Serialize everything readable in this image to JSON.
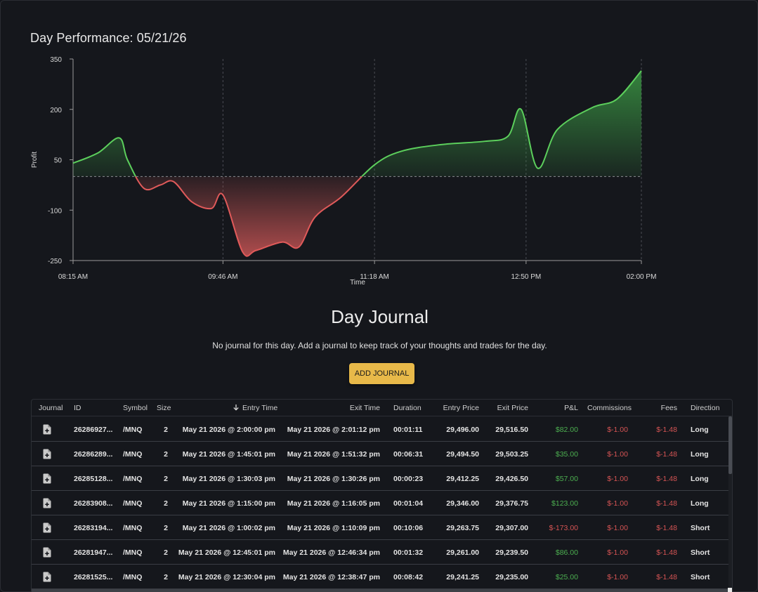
{
  "performance": {
    "title": "Day Performance: 05/21/26"
  },
  "chart_data": {
    "type": "area",
    "xlabel": "Time",
    "ylabel": "Profit",
    "yticks": [
      "350",
      "200",
      "50",
      "-100",
      "-250"
    ],
    "ylim": [
      -250,
      350
    ],
    "xticks": [
      "08:15 AM",
      "09:46 AM",
      "11:18 AM",
      "12:50 PM",
      "02:00 PM"
    ],
    "x_minutes": {
      "start": 495,
      "end": 840,
      "ticks": [
        495,
        586,
        678,
        770,
        840
      ]
    },
    "grid": "vertical dashed at x ticks; dashed zero line",
    "colors": {
      "positive": "#5ccf5c",
      "negative": "#e05a5a",
      "positive_fill": "#3c9b45",
      "negative_fill": "#c85555"
    },
    "series": [
      {
        "x": [
          "08:15",
          "08:30",
          "08:43",
          "08:48",
          "08:58",
          "09:08",
          "09:16",
          "09:27",
          "09:39",
          "09:46",
          "09:58",
          "10:06",
          "10:22",
          "10:32",
          "10:42",
          "10:58",
          "11:18",
          "11:34",
          "11:58",
          "12:25",
          "12:39",
          "12:47",
          "12:57",
          "13:09",
          "13:30",
          "13:45",
          "14:00"
        ],
        "y": [
          40,
          70,
          115,
          50,
          -35,
          -25,
          -15,
          -75,
          -95,
          -55,
          -225,
          -220,
          -195,
          -210,
          -120,
          -60,
          35,
          75,
          95,
          105,
          120,
          200,
          25,
          140,
          205,
          230,
          315
        ]
      }
    ]
  },
  "journal": {
    "title": "Day Journal",
    "message": "No journal for this day. Add a journal to keep track of your thoughts and trades for the day.",
    "add_button": "ADD JOURNAL"
  },
  "table": {
    "columns": {
      "journal": "Journal",
      "id": "ID",
      "symbol": "Symbol",
      "size": "Size",
      "entry_time": "Entry Time",
      "exit_time": "Exit Time",
      "duration": "Duration",
      "entry_price": "Entry Price",
      "exit_price": "Exit Price",
      "pnl": "P&L",
      "commissions": "Commissions",
      "fees": "Fees",
      "direction": "Direction"
    },
    "sort_icon": "arrow-down-icon",
    "rows": [
      {
        "id": "26286927...",
        "symbol": "/MNQ",
        "size": "2",
        "entry_time": "May 21 2026 @ 2:00:00 pm",
        "exit_time": "May 21 2026 @ 2:01:12 pm",
        "duration": "00:01:11",
        "entry_price": "29,496.00",
        "exit_price": "29,516.50",
        "pnl": "$82.00",
        "pnl_sign": "pos",
        "commissions": "$-1.00",
        "fees": "$-1.48",
        "direction": "Long"
      },
      {
        "id": "26286289...",
        "symbol": "/MNQ",
        "size": "2",
        "entry_time": "May 21 2026 @ 1:45:01 pm",
        "exit_time": "May 21 2026 @ 1:51:32 pm",
        "duration": "00:06:31",
        "entry_price": "29,494.50",
        "exit_price": "29,503.25",
        "pnl": "$35.00",
        "pnl_sign": "pos",
        "commissions": "$-1.00",
        "fees": "$-1.48",
        "direction": "Long"
      },
      {
        "id": "26285128...",
        "symbol": "/MNQ",
        "size": "2",
        "entry_time": "May 21 2026 @ 1:30:03 pm",
        "exit_time": "May 21 2026 @ 1:30:26 pm",
        "duration": "00:00:23",
        "entry_price": "29,412.25",
        "exit_price": "29,426.50",
        "pnl": "$57.00",
        "pnl_sign": "pos",
        "commissions": "$-1.00",
        "fees": "$-1.48",
        "direction": "Long"
      },
      {
        "id": "26283908...",
        "symbol": "/MNQ",
        "size": "2",
        "entry_time": "May 21 2026 @ 1:15:00 pm",
        "exit_time": "May 21 2026 @ 1:16:05 pm",
        "duration": "00:01:04",
        "entry_price": "29,346.00",
        "exit_price": "29,376.75",
        "pnl": "$123.00",
        "pnl_sign": "pos",
        "commissions": "$-1.00",
        "fees": "$-1.48",
        "direction": "Long"
      },
      {
        "id": "26283194...",
        "symbol": "/MNQ",
        "size": "2",
        "entry_time": "May 21 2026 @ 1:00:02 pm",
        "exit_time": "May 21 2026 @ 1:10:09 pm",
        "duration": "00:10:06",
        "entry_price": "29,263.75",
        "exit_price": "29,307.00",
        "pnl": "$-173.00",
        "pnl_sign": "neg",
        "commissions": "$-1.00",
        "fees": "$-1.48",
        "direction": "Short"
      },
      {
        "id": "26281947...",
        "symbol": "/MNQ",
        "size": "2",
        "entry_time": "May 21 2026 @ 12:45:01 pm",
        "exit_time": "May 21 2026 @ 12:46:34 pm",
        "duration": "00:01:32",
        "entry_price": "29,261.00",
        "exit_price": "29,239.50",
        "pnl": "$86.00",
        "pnl_sign": "pos",
        "commissions": "$-1.00",
        "fees": "$-1.48",
        "direction": "Short"
      },
      {
        "id": "26281525...",
        "symbol": "/MNQ",
        "size": "2",
        "entry_time": "May 21 2026 @ 12:30:04 pm",
        "exit_time": "May 21 2026 @ 12:38:47 pm",
        "duration": "00:08:42",
        "entry_price": "29,241.25",
        "exit_price": "29,235.00",
        "pnl": "$25.00",
        "pnl_sign": "pos",
        "commissions": "$-1.00",
        "fees": "$-1.48",
        "direction": "Short"
      }
    ]
  }
}
